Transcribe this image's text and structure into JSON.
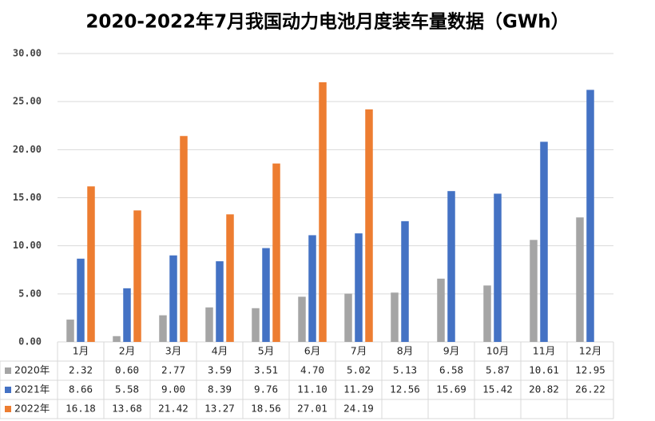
{
  "chart_data": {
    "type": "bar",
    "title": "2020-2022年7月我国动力电池月度装车量数据（GWh）",
    "categories": [
      "1月",
      "2月",
      "3月",
      "4月",
      "5月",
      "6月",
      "7月",
      "8月",
      "9月",
      "10月",
      "11月",
      "12月"
    ],
    "series": [
      {
        "name": "2020年",
        "color": "#a5a5a5",
        "values": [
          2.32,
          0.6,
          2.77,
          3.59,
          3.51,
          4.7,
          5.02,
          5.13,
          6.58,
          5.87,
          10.61,
          12.95
        ],
        "value_labels": [
          "2.32",
          "0.60",
          "2.77",
          "3.59",
          "3.51",
          "4.70",
          "5.02",
          "5.13",
          "6.58",
          "5.87",
          "10.61",
          "12.95"
        ]
      },
      {
        "name": "2021年",
        "color": "#4472c4",
        "values": [
          8.66,
          5.58,
          9.0,
          8.39,
          9.76,
          11.1,
          11.29,
          12.56,
          15.69,
          15.42,
          20.82,
          26.22
        ],
        "value_labels": [
          "8.66",
          "5.58",
          "9.00",
          "8.39",
          "9.76",
          "11.10",
          "11.29",
          "12.56",
          "15.69",
          "15.42",
          "20.82",
          "26.22"
        ]
      },
      {
        "name": "2022年",
        "color": "#ed7d31",
        "values": [
          16.18,
          13.68,
          21.42,
          13.27,
          18.56,
          27.01,
          24.19,
          null,
          null,
          null,
          null,
          null
        ],
        "value_labels": [
          "16.18",
          "13.68",
          "21.42",
          "13.27",
          "18.56",
          "27.01",
          "24.19",
          null,
          null,
          null,
          null,
          null
        ]
      }
    ],
    "ylim": [
      0,
      30
    ],
    "yticks": [
      {
        "value": 0,
        "label": "0.00"
      },
      {
        "value": 5,
        "label": "5.00"
      },
      {
        "value": 10,
        "label": "10.00"
      },
      {
        "value": 15,
        "label": "15.00"
      },
      {
        "value": 20,
        "label": "20.00"
      },
      {
        "value": 25,
        "label": "25.00"
      },
      {
        "value": 30,
        "label": "30.00"
      }
    ],
    "grid": true
  }
}
